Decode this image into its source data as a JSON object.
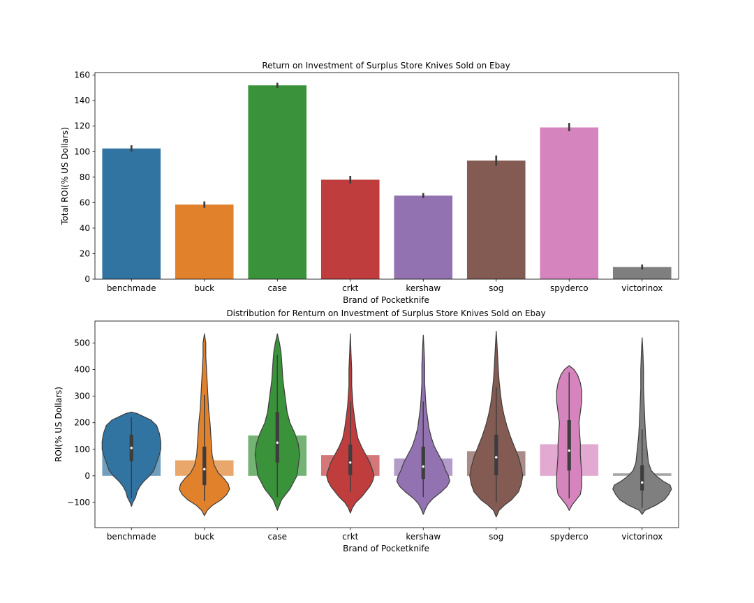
{
  "chart_data": [
    {
      "type": "bar",
      "title": "Return on Investment of Surplus Store Knives Sold on Ebay",
      "xlabel": "Brand of Pocketknife",
      "ylabel": "Total ROI(% US Dollars)",
      "categories": [
        "benchmade",
        "buck",
        "case",
        "crkt",
        "kershaw",
        "sog",
        "spyderco",
        "victorinox"
      ],
      "values": [
        102.5,
        58.5,
        152,
        78,
        65.5,
        93,
        119,
        9.5
      ],
      "error_low": [
        100,
        56,
        150,
        75,
        63.5,
        89,
        116,
        7.5
      ],
      "error_high": [
        105,
        61,
        154,
        81,
        67.5,
        97,
        122.5,
        11.5
      ],
      "ylim": [
        0,
        162
      ],
      "yticks": [
        0,
        20,
        40,
        60,
        80,
        100,
        120,
        140,
        160
      ],
      "colors": [
        "#3274a1",
        "#e1812c",
        "#3a923a",
        "#c03d3e",
        "#9372b2",
        "#845b53",
        "#d684bd",
        "#7f7f7f"
      ],
      "grid": false
    },
    {
      "type": "violin",
      "title": "Distribution for Renturn on Investment of Surplus Store Knives Sold on Ebay",
      "xlabel": "Brand of Pocketknife",
      "ylabel": "ROI(% US Dollars)",
      "categories": [
        "benchmade",
        "buck",
        "case",
        "crkt",
        "kershaw",
        "sog",
        "spyderco",
        "victorinox"
      ],
      "overlay_bar_values": [
        102.5,
        58.5,
        152,
        78,
        65.5,
        93,
        119,
        9.5
      ],
      "ylim": [
        -195,
        583
      ],
      "yticks": [
        -100,
        0,
        100,
        200,
        300,
        400,
        500
      ],
      "grid": false,
      "violins": [
        {
          "median": 105,
          "q1": 55,
          "q3": 155,
          "whisker_low": -85,
          "whisker_high": 220,
          "profile": [
            [
              -115,
              0
            ],
            [
              -100,
              2
            ],
            [
              -90,
              4
            ],
            [
              -80,
              6
            ],
            [
              -60,
              8
            ],
            [
              -40,
              12
            ],
            [
              -20,
              18
            ],
            [
              0,
              26
            ],
            [
              20,
              32
            ],
            [
              50,
              36
            ],
            [
              80,
              40
            ],
            [
              100,
              42
            ],
            [
              130,
              42
            ],
            [
              160,
              40
            ],
            [
              190,
              36
            ],
            [
              210,
              28
            ],
            [
              225,
              16
            ],
            [
              235,
              8
            ],
            [
              240,
              0
            ]
          ]
        },
        {
          "median": 25,
          "q1": -35,
          "q3": 110,
          "whisker_low": -95,
          "whisker_high": 305,
          "profile": [
            [
              -150,
              0
            ],
            [
              -130,
              4
            ],
            [
              -110,
              12
            ],
            [
              -90,
              24
            ],
            [
              -70,
              32
            ],
            [
              -50,
              36
            ],
            [
              -30,
              34
            ],
            [
              -10,
              28
            ],
            [
              10,
              20
            ],
            [
              40,
              14
            ],
            [
              80,
              11
            ],
            [
              120,
              10
            ],
            [
              160,
              9
            ],
            [
              200,
              8
            ],
            [
              250,
              6
            ],
            [
              300,
              5
            ],
            [
              350,
              4
            ],
            [
              400,
              3
            ],
            [
              450,
              2
            ],
            [
              500,
              2
            ],
            [
              535,
              0
            ]
          ]
        },
        {
          "median": 125,
          "q1": 50,
          "q3": 240,
          "whisker_low": -80,
          "whisker_high": 455,
          "profile": [
            [
              -130,
              0
            ],
            [
              -110,
              3
            ],
            [
              -90,
              6
            ],
            [
              -70,
              12
            ],
            [
              -50,
              18
            ],
            [
              -20,
              24
            ],
            [
              0,
              28
            ],
            [
              40,
              30
            ],
            [
              80,
              32
            ],
            [
              120,
              30
            ],
            [
              160,
              25
            ],
            [
              200,
              18
            ],
            [
              240,
              14
            ],
            [
              280,
              12
            ],
            [
              320,
              10
            ],
            [
              360,
              8
            ],
            [
              400,
              7
            ],
            [
              440,
              6
            ],
            [
              470,
              5
            ],
            [
              500,
              3
            ],
            [
              535,
              0
            ]
          ]
        },
        {
          "median": 50,
          "q1": 3,
          "q3": 118,
          "whisker_low": -60,
          "whisker_high": 280,
          "profile": [
            [
              -140,
              0
            ],
            [
              -120,
              3
            ],
            [
              -100,
              8
            ],
            [
              -80,
              16
            ],
            [
              -60,
              22
            ],
            [
              -40,
              28
            ],
            [
              -20,
              32
            ],
            [
              0,
              34
            ],
            [
              20,
              32
            ],
            [
              50,
              28
            ],
            [
              80,
              22
            ],
            [
              110,
              16
            ],
            [
              140,
              11
            ],
            [
              180,
              8
            ],
            [
              220,
              6
            ],
            [
              260,
              4
            ],
            [
              300,
              3
            ],
            [
              340,
              2
            ],
            [
              400,
              2
            ],
            [
              460,
              1
            ],
            [
              535,
              0
            ]
          ]
        },
        {
          "median": 35,
          "q1": -12,
          "q3": 110,
          "whisker_low": -80,
          "whisker_high": 280,
          "profile": [
            [
              -145,
              0
            ],
            [
              -125,
              3
            ],
            [
              -105,
              7
            ],
            [
              -85,
              14
            ],
            [
              -60,
              26
            ],
            [
              -40,
              34
            ],
            [
              -20,
              38
            ],
            [
              0,
              36
            ],
            [
              20,
              32
            ],
            [
              50,
              28
            ],
            [
              80,
              22
            ],
            [
              110,
              16
            ],
            [
              140,
              12
            ],
            [
              180,
              8
            ],
            [
              220,
              6
            ],
            [
              260,
              4
            ],
            [
              300,
              3
            ],
            [
              350,
              2
            ],
            [
              420,
              2
            ],
            [
              480,
              1
            ],
            [
              530,
              0
            ]
          ]
        },
        {
          "median": 70,
          "q1": 2,
          "q3": 155,
          "whisker_low": -100,
          "whisker_high": 335,
          "profile": [
            [
              -155,
              0
            ],
            [
              -130,
              4
            ],
            [
              -110,
              12
            ],
            [
              -90,
              22
            ],
            [
              -60,
              32
            ],
            [
              -30,
              36
            ],
            [
              0,
              38
            ],
            [
              30,
              36
            ],
            [
              70,
              32
            ],
            [
              110,
              26
            ],
            [
              150,
              20
            ],
            [
              190,
              15
            ],
            [
              230,
              11
            ],
            [
              270,
              8
            ],
            [
              310,
              6
            ],
            [
              360,
              4
            ],
            [
              400,
              3
            ],
            [
              450,
              2
            ],
            [
              500,
              1
            ],
            [
              545,
              0
            ]
          ]
        },
        {
          "median": 95,
          "q1": 20,
          "q3": 210,
          "whisker_low": -85,
          "whisker_high": 390,
          "profile": [
            [
              -130,
              0
            ],
            [
              -110,
              4
            ],
            [
              -90,
              10
            ],
            [
              -70,
              16
            ],
            [
              -40,
              18
            ],
            [
              0,
              18
            ],
            [
              40,
              17
            ],
            [
              80,
              16
            ],
            [
              120,
              16
            ],
            [
              160,
              15
            ],
            [
              200,
              14
            ],
            [
              240,
              16
            ],
            [
              280,
              18
            ],
            [
              320,
              18
            ],
            [
              350,
              16
            ],
            [
              380,
              12
            ],
            [
              400,
              7
            ],
            [
              415,
              0
            ]
          ]
        },
        {
          "median": -25,
          "q1": -55,
          "q3": 40,
          "whisker_low": -120,
          "whisker_high": 175,
          "profile": [
            [
              -145,
              0
            ],
            [
              -130,
              4
            ],
            [
              -110,
              20
            ],
            [
              -90,
              32
            ],
            [
              -70,
              38
            ],
            [
              -50,
              42
            ],
            [
              -35,
              40
            ],
            [
              -20,
              30
            ],
            [
              0,
              20
            ],
            [
              20,
              13
            ],
            [
              50,
              9
            ],
            [
              100,
              7
            ],
            [
              150,
              5
            ],
            [
              200,
              4
            ],
            [
              260,
              3
            ],
            [
              330,
              2
            ],
            [
              400,
              2
            ],
            [
              470,
              1
            ],
            [
              520,
              0
            ]
          ]
        }
      ]
    }
  ]
}
